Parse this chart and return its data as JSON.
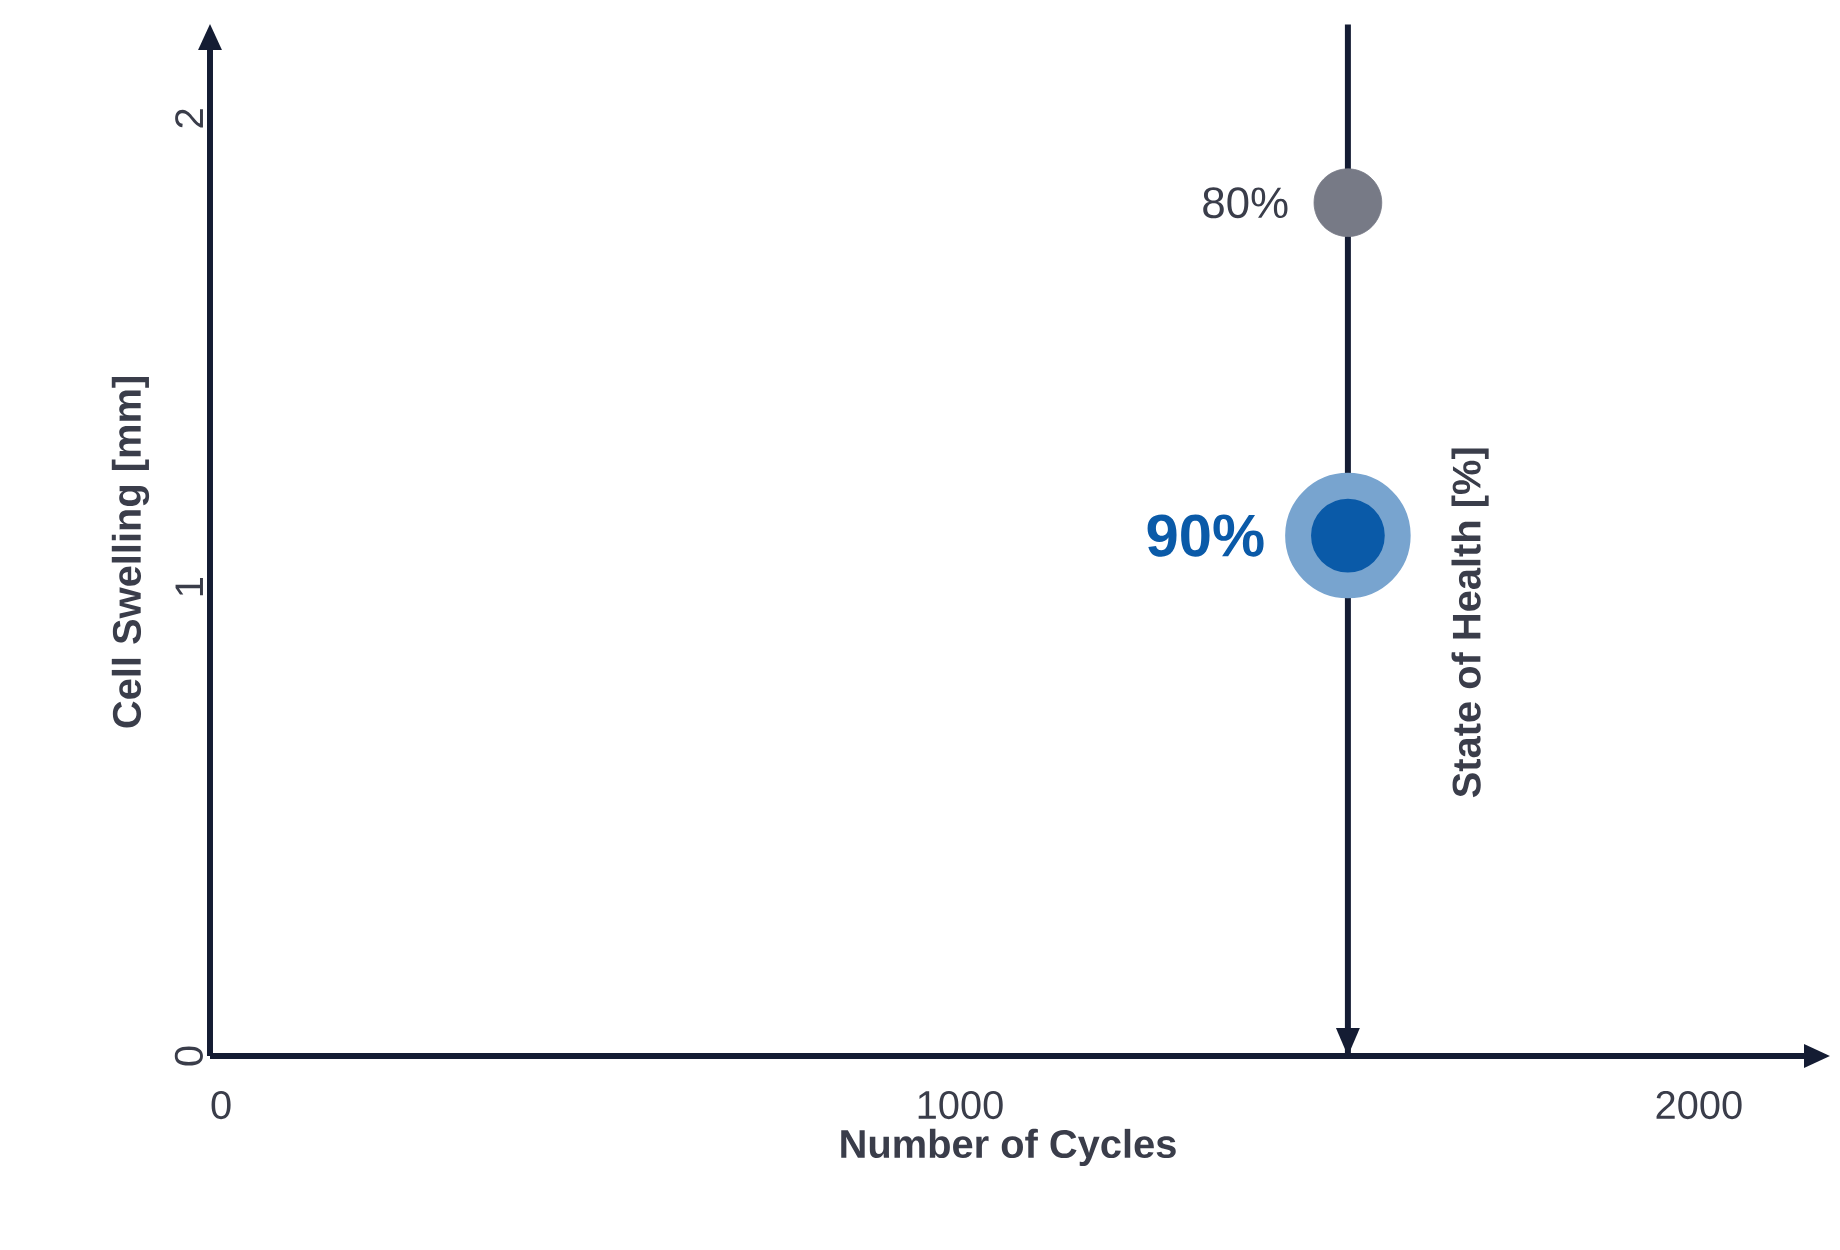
{
  "chart_data": {
    "type": "scatter",
    "xlabel": "Number of Cycles",
    "ylabel": "Cell Swelling [mm]",
    "xlim": [
      -15,
      2145
    ],
    "ylim": [
      0,
      2.15
    ],
    "xticks": [
      0,
      1000,
      2000
    ],
    "yticks": [
      0,
      1,
      2
    ],
    "grid": false,
    "series": [
      {
        "color": "#777a86",
        "x": [
          1525
        ],
        "values": [
          1.82
        ]
      },
      {
        "color": "#0a5aa8",
        "x": [
          1525
        ],
        "values": [
          1.11
        ]
      }
    ],
    "annotations": [
      {
        "text": "80%",
        "x": 1525,
        "y": 1.82
      },
      {
        "text": "90%",
        "x": 1525,
        "y": 1.11
      }
    ],
    "ref_lines": [
      {
        "axis": "x",
        "value": 1525,
        "label": "State of Health [%]",
        "color": "#141c33"
      }
    ]
  }
}
